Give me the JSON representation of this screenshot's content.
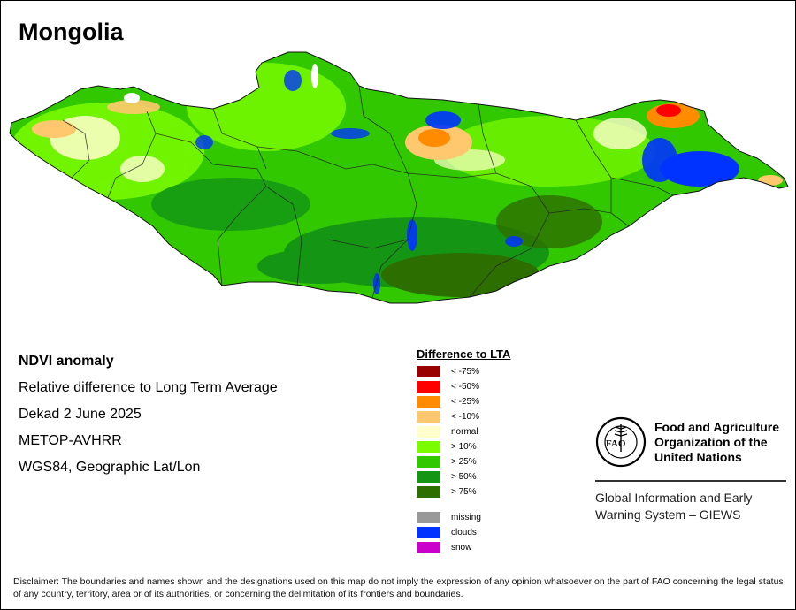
{
  "map": {
    "title": "Mongolia",
    "info_lines": [
      "NDVI anomaly",
      "Relative difference to Long Term Average",
      "Dekad 2 June 2025",
      "METOP-AVHRR",
      "WGS84, Geographic Lat/Lon"
    ]
  },
  "legend": {
    "title": "Difference to LTA",
    "items": [
      {
        "label": "< -75%",
        "color": "#990000"
      },
      {
        "label": "< -50%",
        "color": "#ff0000"
      },
      {
        "label": "< -25%",
        "color": "#ff8c00"
      },
      {
        "label": "< -10%",
        "color": "#ffc86e"
      },
      {
        "label": "normal",
        "color": "#ffffcc"
      },
      {
        "label": "> 10%",
        "color": "#7cfc00"
      },
      {
        "label": "> 25%",
        "color": "#32c800"
      },
      {
        "label": "> 50%",
        "color": "#149614"
      },
      {
        "label": "> 75%",
        "color": "#2d6e00"
      }
    ],
    "extra_items": [
      {
        "label": "missing",
        "color": "#999999"
      },
      {
        "label": "clouds",
        "color": "#0033ff"
      },
      {
        "label": "snow",
        "color": "#cc00cc"
      }
    ]
  },
  "org": {
    "name_line1": "Food and Agriculture",
    "name_line2": "Organization of the",
    "name_line3": "United Nations",
    "logo_letters": "FAO",
    "logo_motto": "FIAT PANIS",
    "system_line1": "Global Information and Early",
    "system_line2": "Warning System – GIEWS"
  },
  "disclaimer": "Disclaimer: The boundaries and names shown and the designations used on this map do not imply the expression of any opinion whatsoever on the part of FAO concerning the legal status of any country, territory, area or of its authorities, or concerning the delimitation of its frontiers and boundaries."
}
